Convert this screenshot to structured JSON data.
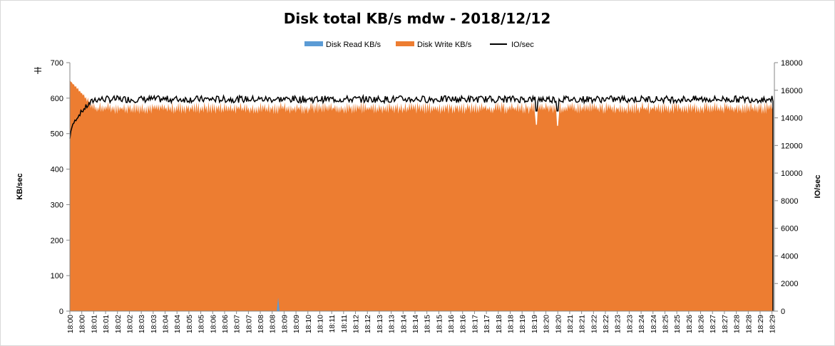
{
  "chart_data": {
    "type": "area",
    "title": "Disk total KB/s mdw - 2018/12/12",
    "ylabel": "KB/sec",
    "y2label": "IO/sec",
    "ylim": [
      0,
      700
    ],
    "y2lim": [
      0,
      18000
    ],
    "yticks": [
      "0",
      "100",
      "200",
      "300",
      "400",
      "500",
      "600",
      "700"
    ],
    "y2ticks": [
      "0",
      "2000",
      "4000",
      "6000",
      "8000",
      "10000",
      "12000",
      "14000",
      "16000",
      "18000"
    ],
    "x_tick_labels": [
      "18:00",
      "18:00",
      "18:01",
      "18:01",
      "18:02",
      "18:02",
      "18:03",
      "18:03",
      "18:04",
      "18:04",
      "18:05",
      "18:05",
      "18:06",
      "18:06",
      "18:07",
      "18:07",
      "18:08",
      "18:08",
      "18:09",
      "18:09",
      "18:10",
      "18:10",
      "18:11",
      "18:11",
      "18:12",
      "18:12",
      "18:13",
      "18:13",
      "18:14",
      "18:14",
      "18:15",
      "18:15",
      "18:16",
      "18:16",
      "18:17",
      "18:17",
      "18:18",
      "18:18",
      "18:19",
      "18:19",
      "18:20",
      "18:20",
      "18:21",
      "18:21",
      "18:22",
      "18:22",
      "18:23",
      "18:23",
      "18:24",
      "18:24",
      "18:25",
      "18:25",
      "18:26",
      "18:26",
      "18:27",
      "18:27",
      "18:28",
      "18:28",
      "18:29",
      "18:29"
    ],
    "legend_position": "top",
    "series": [
      {
        "name": "Disk Read KB/s",
        "color": "#5b9bd5",
        "kind": "area",
        "axis": "left",
        "values_description_free": true,
        "spikes": [
          {
            "x_index": 17.5,
            "value": 38
          }
        ]
      },
      {
        "name": "Disk Write KB/s",
        "color": "#ed7d31",
        "kind": "area",
        "axis": "left",
        "start_value": 650,
        "typical_range": [
          555,
          590
        ],
        "dips": [
          {
            "x_index": 39.2,
            "value": 525
          },
          {
            "x_index": 41.0,
            "value": 522
          }
        ],
        "end_value": 0
      },
      {
        "name": "IO/sec",
        "color": "#000000",
        "kind": "line",
        "axis": "right",
        "start_value": 12500,
        "typical_range": [
          15100,
          15600
        ],
        "dips": [
          {
            "x_index": 39.2,
            "value": 14500
          },
          {
            "x_index": 41.0,
            "value": 14500
          }
        ],
        "end_value": 0
      }
    ]
  }
}
